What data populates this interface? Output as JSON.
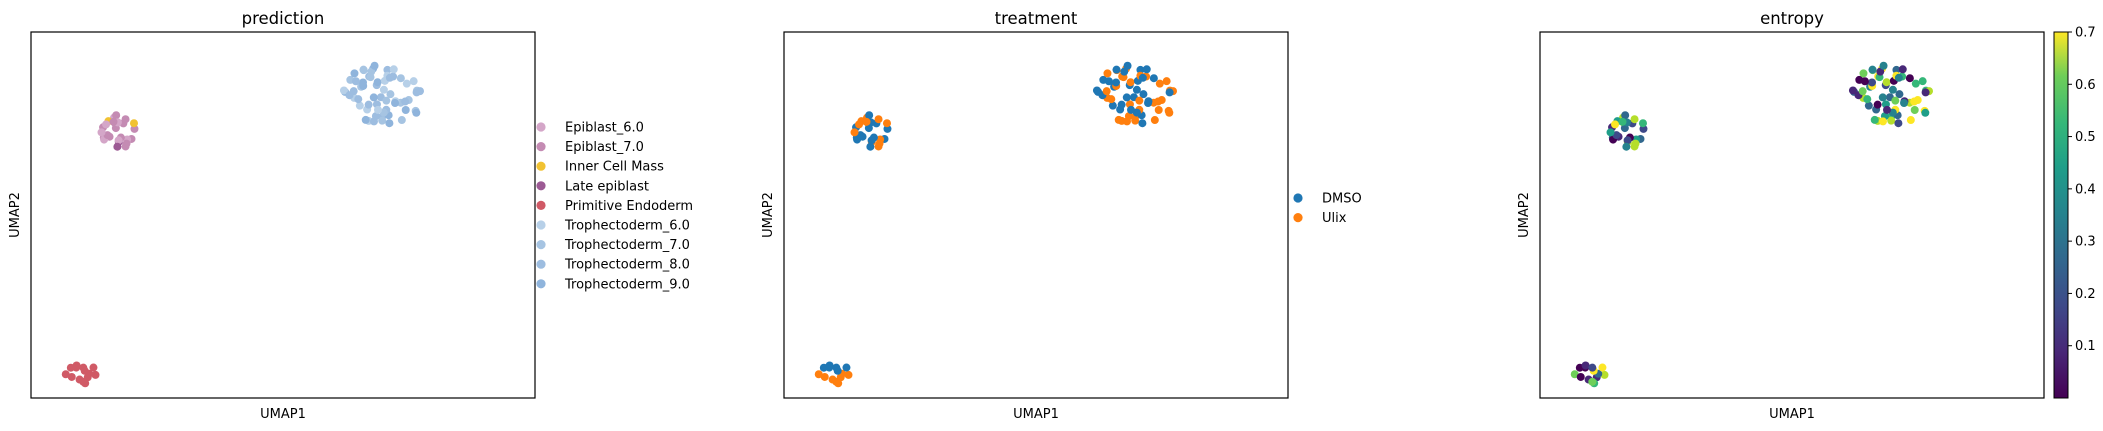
{
  "chart_data": [
    {
      "type": "scatter",
      "title": "prediction",
      "xlabel": "UMAP1",
      "ylabel": "UMAP2",
      "legend_position": "right",
      "legend": [
        {
          "label": "Epiblast_6.0",
          "color": "#d4a6c8"
        },
        {
          "label": "Epiblast_7.0",
          "color": "#c48bb3"
        },
        {
          "label": "Inner Cell Mass",
          "color": "#f1c232"
        },
        {
          "label": "Late epiblast",
          "color": "#9c5a94"
        },
        {
          "label": "Primitive Endoderm",
          "color": "#d05a66"
        },
        {
          "label": "Trophectoderm_6.0",
          "color": "#b7d0e8"
        },
        {
          "label": "Trophectoderm_7.0",
          "color": "#a6c4e2"
        },
        {
          "label": "Trophectoderm_8.0",
          "color": "#9dbde0"
        },
        {
          "label": "Trophectoderm_9.0",
          "color": "#8fb4dc"
        }
      ]
    },
    {
      "type": "scatter",
      "title": "treatment",
      "xlabel": "UMAP1",
      "ylabel": "UMAP2",
      "legend_position": "right",
      "legend": [
        {
          "label": "DMSO",
          "color": "#1f77b4"
        },
        {
          "label": "Ulix",
          "color": "#ff7f0e"
        }
      ]
    },
    {
      "type": "scatter",
      "title": "entropy",
      "xlabel": "UMAP1",
      "ylabel": "UMAP2",
      "colormap": "viridis",
      "colorbar": {
        "min": 0.0,
        "max": 0.7,
        "ticks": [
          "0.1",
          "0.2",
          "0.3",
          "0.4",
          "0.5",
          "0.6",
          "0.7"
        ]
      }
    }
  ],
  "colors": {
    "pred_primitive_endoderm": "#d05a66",
    "pred_icm": "#f1c232",
    "treat_dmso": "#1f77b4",
    "treat_ulix": "#ff7f0e"
  }
}
